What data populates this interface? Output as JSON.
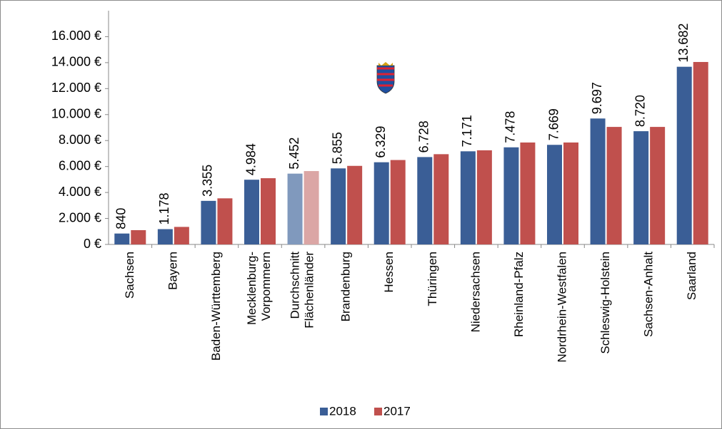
{
  "chart_data": {
    "type": "bar",
    "categories": [
      "Sachsen",
      "Bayern",
      "Baden-Württemberg",
      "Mecklenburg-\nVorpommern",
      "Durchschnitt\nFlächenländer",
      "Brandenburg",
      "Hessen",
      "Thüringen",
      "Niedersachsen",
      "Rheinland-Pfalz",
      "Nordrhein-Westfalen",
      "Schleswig-Holstein",
      "Sachsen-Anhalt",
      "Saarland"
    ],
    "series": [
      {
        "name": "2018",
        "color": "#3a5e96",
        "highlight_color": "#8099bd",
        "values": [
          840,
          1178,
          3355,
          4984,
          5452,
          5855,
          6329,
          6728,
          7171,
          7478,
          7669,
          9697,
          8720,
          13682
        ],
        "value_labels": [
          "840",
          "1.178",
          "3.355",
          "4.984",
          "5.452",
          "5.855",
          "6.329",
          "6.728",
          "7.171",
          "7.478",
          "7.669",
          "9.697",
          "8.720",
          "13.682"
        ]
      },
      {
        "name": "2017",
        "color": "#c0504d",
        "highlight_color": "#dba6a5",
        "values": [
          1100,
          1350,
          3550,
          5100,
          5650,
          6050,
          6500,
          6950,
          7250,
          7850,
          7850,
          9050,
          9050,
          14050
        ]
      }
    ],
    "highlight_index": 4,
    "ylim": [
      0,
      18000
    ],
    "yticks": [
      {
        "value": 0,
        "label": "0 €"
      },
      {
        "value": 2000,
        "label": "2.000 €"
      },
      {
        "value": 4000,
        "label": "4.000 €"
      },
      {
        "value": 6000,
        "label": "6.000 €"
      },
      {
        "value": 8000,
        "label": "8.000 €"
      },
      {
        "value": 10000,
        "label": "10.000 €"
      },
      {
        "value": 12000,
        "label": "12.000 €"
      },
      {
        "value": 14000,
        "label": "14.000 €"
      },
      {
        "value": 16000,
        "label": "16.000 €"
      }
    ],
    "grid": false
  }
}
